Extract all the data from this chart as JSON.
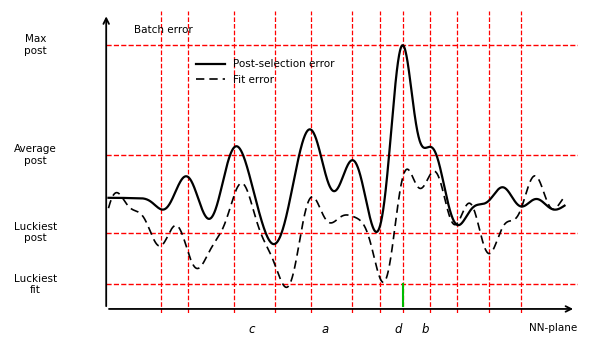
{
  "y_levels": {
    "batch_error": 0.9,
    "average_post": 0.52,
    "luckiest_post": 0.25,
    "luckiest_fit": 0.07
  },
  "x_labels": {
    "c": 0.315,
    "a": 0.475,
    "d": 0.635,
    "b": 0.695,
    "NN-plane": 0.97
  },
  "vline_positions": [
    0.115,
    0.175,
    0.275,
    0.365,
    0.445,
    0.535,
    0.595,
    0.645,
    0.705,
    0.765,
    0.835,
    0.905
  ],
  "green_vline_x": 0.645,
  "colors": {
    "red_dashed": "#ff0000",
    "green": "#00bb00",
    "black": "#000000"
  },
  "figsize": [
    5.9,
    3.56
  ],
  "dpi": 100
}
